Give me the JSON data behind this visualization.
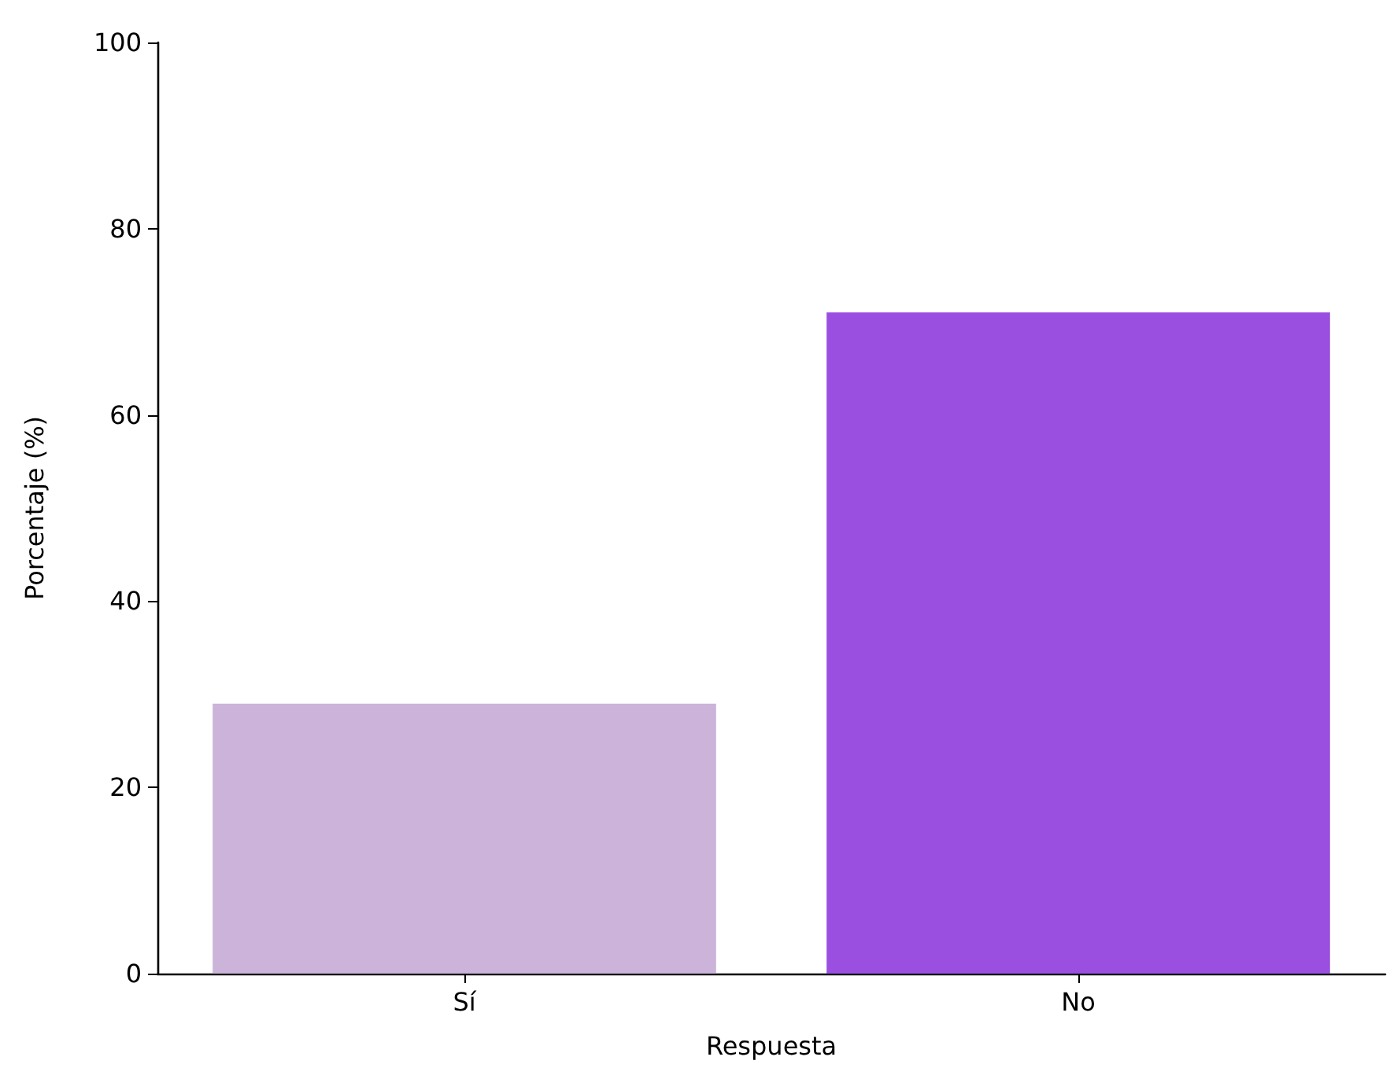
{
  "chart_data": {
    "type": "bar",
    "xlabel": "Respuesta",
    "ylabel": "Porcentaje (%)",
    "categories": [
      "Sí",
      "No"
    ],
    "values": [
      29,
      71
    ],
    "colors": [
      "#cbb3d9",
      "#9b4fe0"
    ],
    "ylim": [
      0,
      100
    ],
    "yticks": [
      0,
      20,
      40,
      60,
      80,
      100
    ],
    "grid": false
  }
}
